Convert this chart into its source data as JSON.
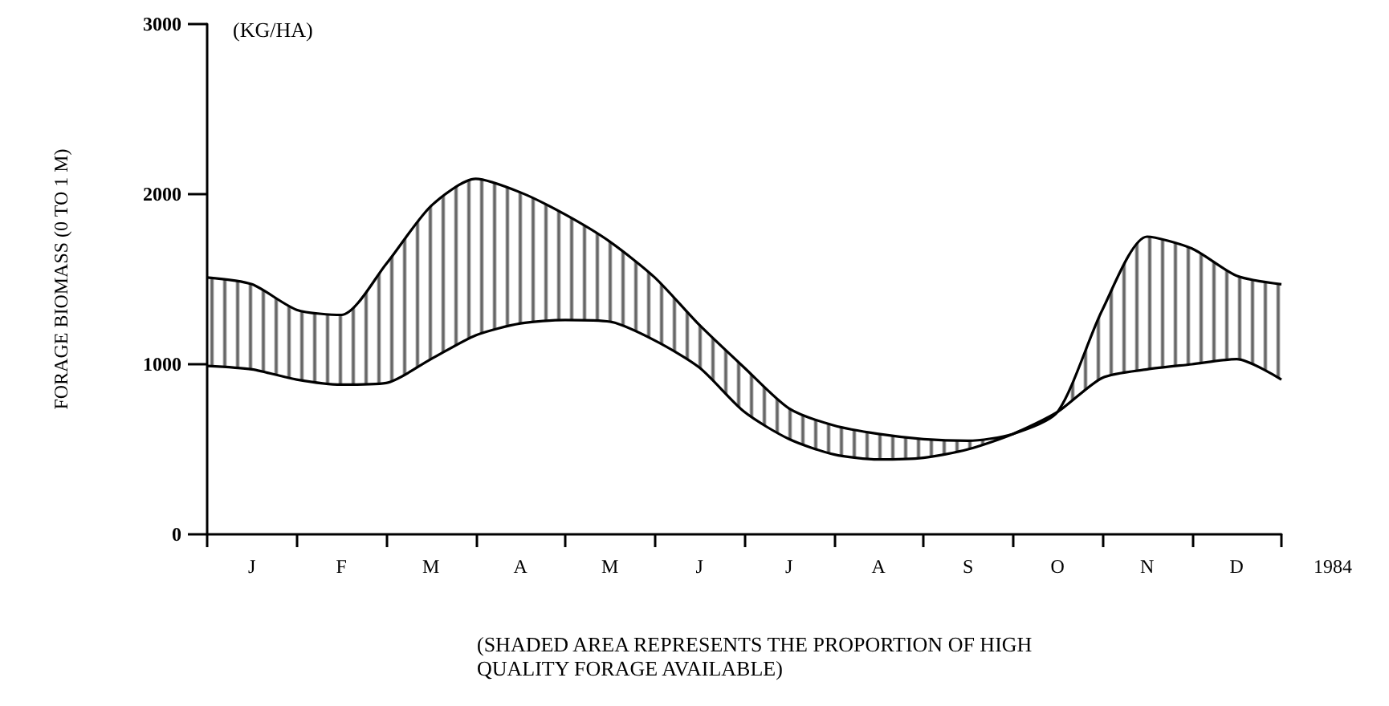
{
  "chart_data": {
    "type": "line",
    "ylabel": "FORAGE BIOMASS (0 TO 1 M)",
    "xlabel": "1984",
    "annotations": [
      "(KG/HA)",
      "(SHADED AREA REPRESENTS THE PROPORTION OF HIGH QUALITY FORAGE AVAILABLE)"
    ],
    "categories": [
      null,
      "J",
      null,
      "F",
      null,
      "M",
      null,
      "A",
      null,
      "M",
      null,
      "J",
      null,
      "J",
      null,
      "A",
      null,
      "S",
      null,
      "O",
      null,
      "N",
      null,
      "D",
      null
    ],
    "series": [
      {
        "color": "#000000",
        "values": [
          1510,
          1470,
          1320,
          1290,
          1590,
          1930,
          2090,
          2010,
          1880,
          1720,
          1510,
          1230,
          980,
          740,
          640,
          590,
          560,
          550,
          590,
          720,
          1320,
          1750,
          1680,
          1520,
          1470
        ],
        "lower": [
          990,
          970,
          910,
          880,
          890,
          1030,
          1170,
          1240,
          1260,
          1250,
          1140,
          980,
          720,
          560,
          470,
          440,
          450,
          500,
          590,
          720,
          920,
          970,
          1000,
          1030,
          910
        ],
        "upper": [
          1510,
          1470,
          1320,
          1290,
          1590,
          1930,
          2090,
          2010,
          1880,
          1720,
          1510,
          1230,
          980,
          740,
          640,
          590,
          560,
          550,
          590,
          720,
          1320,
          1750,
          1680,
          1520,
          1470
        ]
      },
      {
        "color": "#000000",
        "values": [
          990,
          970,
          910,
          880,
          890,
          1030,
          1170,
          1240,
          1260,
          1250,
          1140,
          980,
          720,
          560,
          470,
          440,
          450,
          500,
          590,
          720,
          920,
          970,
          1000,
          1030,
          910
        ]
      }
    ],
    "ylim": [
      0,
      3000
    ],
    "yticks": [
      0,
      1000,
      2000,
      3000
    ],
    "grid": false,
    "marker": "none",
    "line_style": "solid"
  }
}
